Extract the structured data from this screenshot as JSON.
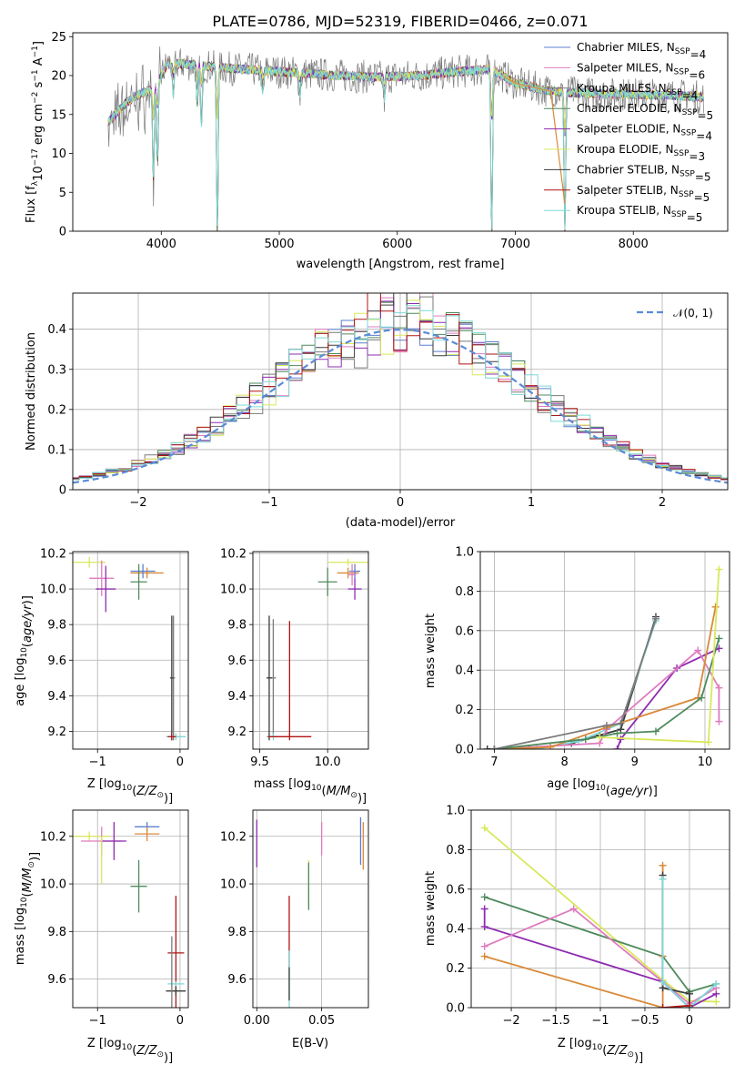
{
  "title": "PLATE=0786, MJD=52319, FIBERID=0466, z=0.071",
  "colors": {
    "Chabrier MILES": "#5b7fd0",
    "Salpeter MILES": "#e07bc0",
    "Kroupa MILES": "#7a7a7a",
    "Chabrier ELODIE": "#4f8a5d",
    "Salpeter ELODIE": "#8e2cb0",
    "Kroupa ELODIE": "#d8e85a",
    "Chabrier STELIB": "#3a3a3a",
    "Salpeter STELIB": "#b01515",
    "Kroupa STELIB": "#7fd8d8",
    "orange": "#d98a3a",
    "normal": "#5b8ad8"
  },
  "chart_data": [
    {
      "id": "spectrum",
      "type": "line",
      "title": "PLATE=0786, MJD=52319, FIBERID=0466, z=0.071",
      "xlabel": "wavelength [Angstrom, rest frame]",
      "ylabel": "Flux [f_λ 10^-17 erg cm^-2 s^-1 A^-1]",
      "xlim": [
        3250,
        8800
      ],
      "ylim": [
        0,
        25.5
      ],
      "xticks": [
        4000,
        5000,
        6000,
        7000,
        8000
      ],
      "yticks": [
        0,
        5,
        10,
        15,
        20,
        25
      ],
      "legend_position": "top-right",
      "series_labels": [
        {
          "name": "Chabrier MILES",
          "n": "4"
        },
        {
          "name": "Salpeter MILES",
          "n": "6"
        },
        {
          "name": "Kroupa MILES",
          "n": "4"
        },
        {
          "name": "Chabrier ELODIE",
          "n": "5"
        },
        {
          "name": "Salpeter ELODIE",
          "n": "4"
        },
        {
          "name": "Kroupa ELODIE",
          "n": "3"
        },
        {
          "name": "Chabrier STELIB",
          "n": "5"
        },
        {
          "name": "Salpeter STELIB",
          "n": "5"
        },
        {
          "name": "Kroupa STELIB",
          "n": "5"
        }
      ],
      "continuum": [
        [
          3550,
          14
        ],
        [
          3700,
          16.5
        ],
        [
          3800,
          17.5
        ],
        [
          3950,
          18.5
        ],
        [
          4050,
          21.5
        ],
        [
          4200,
          21.5
        ],
        [
          4500,
          21
        ],
        [
          5000,
          20.5
        ],
        [
          5500,
          20
        ],
        [
          5800,
          19.8
        ],
        [
          6200,
          20
        ],
        [
          6500,
          20.5
        ],
        [
          6800,
          20.8
        ],
        [
          7000,
          19
        ],
        [
          7300,
          18
        ],
        [
          7500,
          17.8
        ],
        [
          7800,
          17.6
        ],
        [
          8300,
          17.5
        ],
        [
          8600,
          17.2
        ]
      ],
      "features": [
        {
          "x": 3933,
          "depth": 12
        },
        {
          "x": 3968,
          "depth": 10
        },
        {
          "x": 4102,
          "depth": 4
        },
        {
          "x": 4305,
          "depth": 5
        },
        {
          "x": 4340,
          "depth": 8
        },
        {
          "x": 4475,
          "depth": 21
        },
        {
          "x": 4861,
          "depth": 3
        },
        {
          "x": 5175,
          "depth": 3
        },
        {
          "x": 5890,
          "depth": 3
        },
        {
          "x": 6800,
          "depth": 21
        },
        {
          "x": 7420,
          "depth": 18
        }
      ]
    },
    {
      "id": "residuals",
      "type": "line",
      "xlabel": "(data-model)/error",
      "ylabel": "Normed distribution",
      "xlim": [
        -2.5,
        2.5
      ],
      "ylim": [
        0,
        0.49
      ],
      "xticks": [
        -2,
        -1,
        0,
        1,
        2
      ],
      "yticks": [
        0.0,
        0.1,
        0.2,
        0.3,
        0.4
      ],
      "legend": "𝒩(0, 1)",
      "legend_position": "top-right"
    },
    {
      "id": "age-Z",
      "type": "scatter",
      "xlabel": "Z [log10(Z/Z⊙)]",
      "ylabel": "age  [log10(age/yr)]",
      "xlim": [
        -1.3,
        0.1
      ],
      "ylim": [
        9.1,
        10.21
      ],
      "xticks": [
        -1,
        0
      ],
      "yticks": [
        9.2,
        9.4,
        9.6,
        9.8,
        10.0,
        10.2
      ],
      "points": [
        {
          "c": "Kroupa ELODIE",
          "x": -1.1,
          "y": 10.15,
          "ex": 0.2,
          "ey": 0.03
        },
        {
          "c": "Salpeter MILES",
          "x": -0.95,
          "y": 10.06,
          "ex": 0.15,
          "ey": 0.1
        },
        {
          "c": "Salpeter ELODIE",
          "x": -0.9,
          "y": 10.0,
          "ex": 0.12,
          "ey": 0.13
        },
        {
          "c": "orange",
          "x": -0.4,
          "y": 10.09,
          "ex": 0.2,
          "ey": 0.03
        },
        {
          "c": "Chabrier MILES",
          "x": -0.45,
          "y": 10.1,
          "ex": 0.15,
          "ey": 0.04
        },
        {
          "c": "Chabrier ELODIE",
          "x": -0.5,
          "y": 10.04,
          "ex": 0.1,
          "ey": 0.1
        },
        {
          "c": "Kroupa MILES",
          "x": -0.08,
          "y": 9.5,
          "ex": 0.02,
          "ey": 0.35
        },
        {
          "c": "Chabrier STELIB",
          "x": -0.1,
          "y": 9.5,
          "ex": 0.02,
          "ey": 0.35
        },
        {
          "c": "Kroupa STELIB",
          "x": -0.05,
          "y": 9.17,
          "ex": 0.12,
          "ey": 0.02
        },
        {
          "c": "Salpeter STELIB",
          "x": -0.1,
          "y": 9.17,
          "ex": 0.05,
          "ey": 0.02
        }
      ]
    },
    {
      "id": "age-mass",
      "type": "scatter",
      "xlabel": "mass [log10(M/M⊙)]",
      "xlim": [
        9.45,
        10.3
      ],
      "ylim": [
        9.1,
        10.21
      ],
      "xticks": [
        9.5,
        10.0
      ],
      "yticks": [
        9.2,
        9.4,
        9.6,
        9.8,
        10.0,
        10.2
      ],
      "points": [
        {
          "c": "Kroupa ELODIE",
          "x": 10.15,
          "y": 10.15,
          "ex": 0.15,
          "ey": 0.02
        },
        {
          "c": "orange",
          "x": 10.15,
          "y": 10.09,
          "ex": 0.08,
          "ey": 0.03
        },
        {
          "c": "Chabrier MILES",
          "x": 10.2,
          "y": 10.1,
          "ex": 0.04,
          "ey": 0.04
        },
        {
          "c": "Salpeter ELODIE",
          "x": 10.2,
          "y": 10.0,
          "ex": 0.05,
          "ey": 0.06
        },
        {
          "c": "Chabrier ELODIE",
          "x": 10.0,
          "y": 10.04,
          "ex": 0.07,
          "ey": 0.08
        },
        {
          "c": "Salpeter MILES",
          "x": 10.18,
          "y": 10.08,
          "ex": 0.03,
          "ey": 0.06
        },
        {
          "c": "Kroupa MILES",
          "x": 9.6,
          "y": 9.5,
          "ex": 0.02,
          "ey": 0.33
        },
        {
          "c": "Chabrier STELIB",
          "x": 9.57,
          "y": 9.5,
          "ex": 0.02,
          "ey": 0.35
        },
        {
          "c": "Kroupa STELIB",
          "x": 9.6,
          "y": 9.17,
          "ex": 0.05,
          "ey": 0.02
        },
        {
          "c": "Salpeter STELIB",
          "x": 9.72,
          "y": 9.17,
          "ex": 0.16,
          "ey": 0.02
        },
        {
          "c": "Salpeter STELIB",
          "x": 9.72,
          "y": 9.5,
          "ex": 0.0,
          "ey": 0.32
        }
      ]
    },
    {
      "id": "weight-age",
      "type": "line",
      "xlabel": "age  [log10(age/yr)]",
      "ylabel": "mass weight",
      "xlim": [
        6.8,
        10.35
      ],
      "ylim": [
        0,
        1.0
      ],
      "xticks": [
        7,
        8,
        9,
        10
      ],
      "yticks": [
        0.0,
        0.2,
        0.4,
        0.6,
        0.8,
        1.0
      ],
      "series": [
        {
          "c": "Chabrier STELIB",
          "pts": [
            [
              6.9,
              0
            ],
            [
              7.5,
              0
            ],
            [
              8.1,
              0.03
            ],
            [
              8.5,
              0.07
            ],
            [
              8.8,
              0.1
            ],
            [
              9.3,
              0.67
            ]
          ]
        },
        {
          "c": "Kroupa STELIB",
          "pts": [
            [
              7.0,
              0
            ],
            [
              7.6,
              0
            ],
            [
              8.2,
              0.04
            ],
            [
              8.6,
              0.1
            ],
            [
              8.8,
              0.13
            ],
            [
              9.3,
              0.65
            ]
          ]
        },
        {
          "c": "Salpeter ELODIE",
          "pts": [
            [
              8.75,
              0
            ],
            [
              8.8,
              0.05
            ],
            [
              9.6,
              0.41
            ],
            [
              10.2,
              0.51
            ]
          ]
        },
        {
          "c": "Salpeter MILES",
          "pts": [
            [
              7.0,
              0
            ],
            [
              8.5,
              0.03
            ],
            [
              8.6,
              0.1
            ],
            [
              9.9,
              0.5
            ],
            [
              10.2,
              0.31
            ],
            [
              10.2,
              0.14
            ]
          ]
        },
        {
          "c": "orange",
          "pts": [
            [
              7.0,
              0
            ],
            [
              7.8,
              0.01
            ],
            [
              8.6,
              0.11
            ],
            [
              9.9,
              0.26
            ],
            [
              10.15,
              0.72
            ]
          ]
        },
        {
          "c": "Chabrier ELODIE",
          "pts": [
            [
              7.0,
              0
            ],
            [
              8.3,
              0.05
            ],
            [
              8.75,
              0.08
            ],
            [
              9.3,
              0.09
            ],
            [
              9.95,
              0.26
            ],
            [
              10.2,
              0.56
            ]
          ]
        },
        {
          "c": "Kroupa ELODIE",
          "pts": [
            [
              8.5,
              0.06
            ],
            [
              10.05,
              0.035
            ],
            [
              10.2,
              0.91
            ]
          ]
        },
        {
          "c": "Kroupa MILES",
          "pts": [
            [
              7.0,
              0
            ],
            [
              8.6,
              0.12
            ],
            [
              8.8,
              0.13
            ],
            [
              9.3,
              0.66
            ]
          ]
        }
      ]
    },
    {
      "id": "mass-Z",
      "type": "scatter",
      "xlabel": "Z [log10(Z/Z⊙)]",
      "ylabel": "mass [log10(M/M⊙)]",
      "xlim": [
        -1.3,
        0.1
      ],
      "ylim": [
        9.48,
        10.31
      ],
      "xticks": [
        -1,
        0
      ],
      "yticks": [
        9.6,
        9.8,
        10.0,
        10.2
      ],
      "points": [
        {
          "c": "Kroupa ELODIE",
          "x": -1.1,
          "y": 10.2,
          "ex": 0.25,
          "ey": 0.02
        },
        {
          "c": "Salpeter MILES",
          "x": -0.95,
          "y": 10.18,
          "ex": 0.25,
          "ey": 0.06
        },
        {
          "c": "Salpeter ELODIE",
          "x": -0.8,
          "y": 10.18,
          "ex": 0.15,
          "ey": 0.08
        },
        {
          "c": "Kroupa ELODIE",
          "x": -0.95,
          "y": 10.1,
          "ex": 0.0,
          "ey": 0.1
        },
        {
          "c": "Chabrier MILES",
          "x": -0.4,
          "y": 10.24,
          "ex": 0.15,
          "ey": 0.02
        },
        {
          "c": "orange",
          "x": -0.4,
          "y": 10.21,
          "ex": 0.15,
          "ey": 0.03
        },
        {
          "c": "Chabrier ELODIE",
          "x": -0.5,
          "y": 9.99,
          "ex": 0.1,
          "ey": 0.11
        },
        {
          "c": "Salpeter STELIB",
          "x": -0.05,
          "y": 9.71,
          "ex": 0.1,
          "ey": 0.24
        },
        {
          "c": "Kroupa STELIB",
          "x": -0.05,
          "y": 9.58,
          "ex": 0.1,
          "ey": 0.01
        },
        {
          "c": "Chabrier STELIB",
          "x": -0.05,
          "y": 9.55,
          "ex": 0.12,
          "ey": 0.02
        },
        {
          "c": "Kroupa MILES",
          "x": -0.1,
          "y": 9.6,
          "ex": 0.0,
          "ey": 0.18
        }
      ]
    },
    {
      "id": "mass-EBV",
      "type": "scatter",
      "xlabel": "E(B-V)",
      "xlim": [
        -0.003,
        0.086
      ],
      "ylim": [
        9.48,
        10.31
      ],
      "xticks": [
        0.0,
        0.05
      ],
      "yticks": [
        9.6,
        9.8,
        10.0,
        10.2
      ],
      "points": [
        {
          "c": "Salpeter ELODIE",
          "x": 0.0,
          "y": 10.17,
          "ex": 0,
          "ey": 0.1
        },
        {
          "c": "Salpeter MILES",
          "x": 0.05,
          "y": 10.19,
          "ex": 0,
          "ey": 0.07
        },
        {
          "c": "Chabrier MILES",
          "x": 0.08,
          "y": 10.18,
          "ex": 0,
          "ey": 0.1
        },
        {
          "c": "orange",
          "x": 0.082,
          "y": 10.16,
          "ex": 0,
          "ey": 0.1
        },
        {
          "c": "Kroupa ELODIE",
          "x": 0.04,
          "y": 10.0,
          "ex": 0,
          "ey": 0.1
        },
        {
          "c": "Chabrier ELODIE",
          "x": 0.04,
          "y": 9.99,
          "ex": 0,
          "ey": 0.1
        },
        {
          "c": "Salpeter STELIB",
          "x": 0.025,
          "y": 9.8,
          "ex": 0,
          "ey": 0.15
        },
        {
          "c": "Kroupa STELIB",
          "x": 0.025,
          "y": 9.6,
          "ex": 0,
          "ey": 0.12
        },
        {
          "c": "Chabrier STELIB",
          "x": 0.025,
          "y": 9.58,
          "ex": 0,
          "ey": 0.07
        }
      ]
    },
    {
      "id": "weight-Z",
      "type": "line",
      "xlabel": "Z [log10(Z/Z⊙)]",
      "ylabel": "mass weight",
      "xlim": [
        -2.45,
        0.45
      ],
      "ylim": [
        0,
        1.0
      ],
      "xticks": [
        -2.0,
        -1.5,
        -1.0,
        -0.5,
        0.0
      ],
      "yticks": [
        0.0,
        0.2,
        0.4,
        0.6,
        0.8,
        1.0
      ],
      "series": [
        {
          "c": "Kroupa ELODIE",
          "pts": [
            [
              -2.3,
              0.91
            ],
            [
              -0.3,
              0.14
            ],
            [
              0.0,
              0.035
            ],
            [
              0.3,
              0.03
            ]
          ]
        },
        {
          "c": "Chabrier ELODIE",
          "pts": [
            [
              -2.3,
              0.56
            ],
            [
              -0.3,
              0.26
            ],
            [
              0.0,
              0.08
            ],
            [
              0.3,
              0.12
            ]
          ]
        },
        {
          "c": "Salpeter ELODIE",
          "pts": [
            [
              -2.3,
              0.5
            ],
            [
              -2.3,
              0.41
            ],
            [
              -0.3,
              0.13
            ],
            [
              0.0,
              0.0
            ],
            [
              0.3,
              0.07
            ]
          ]
        },
        {
          "c": "Salpeter MILES",
          "pts": [
            [
              -2.3,
              0.31
            ],
            [
              -1.3,
              0.5
            ],
            [
              0.0,
              0.02
            ],
            [
              0.3,
              0.1
            ]
          ]
        },
        {
          "c": "orange",
          "pts": [
            [
              -2.3,
              0.26
            ],
            [
              -0.3,
              0.0
            ],
            [
              -0.3,
              0.72
            ],
            [
              -0.3,
              0.26
            ]
          ]
        },
        {
          "c": "Chabrier STELIB",
          "pts": [
            [
              -0.3,
              0.67
            ],
            [
              -0.3,
              0.1
            ],
            [
              0.0,
              0.07
            ],
            [
              0.0,
              0.0
            ]
          ]
        },
        {
          "c": "Kroupa STELIB",
          "pts": [
            [
              -0.3,
              0.65
            ],
            [
              -0.3,
              0.13
            ],
            [
              0.0,
              0.0
            ],
            [
              0.3,
              0.12
            ]
          ]
        },
        {
          "c": "Salpeter STELIB",
          "pts": [
            [
              -0.3,
              0.0
            ],
            [
              0.0,
              0.01
            ]
          ]
        }
      ]
    }
  ]
}
